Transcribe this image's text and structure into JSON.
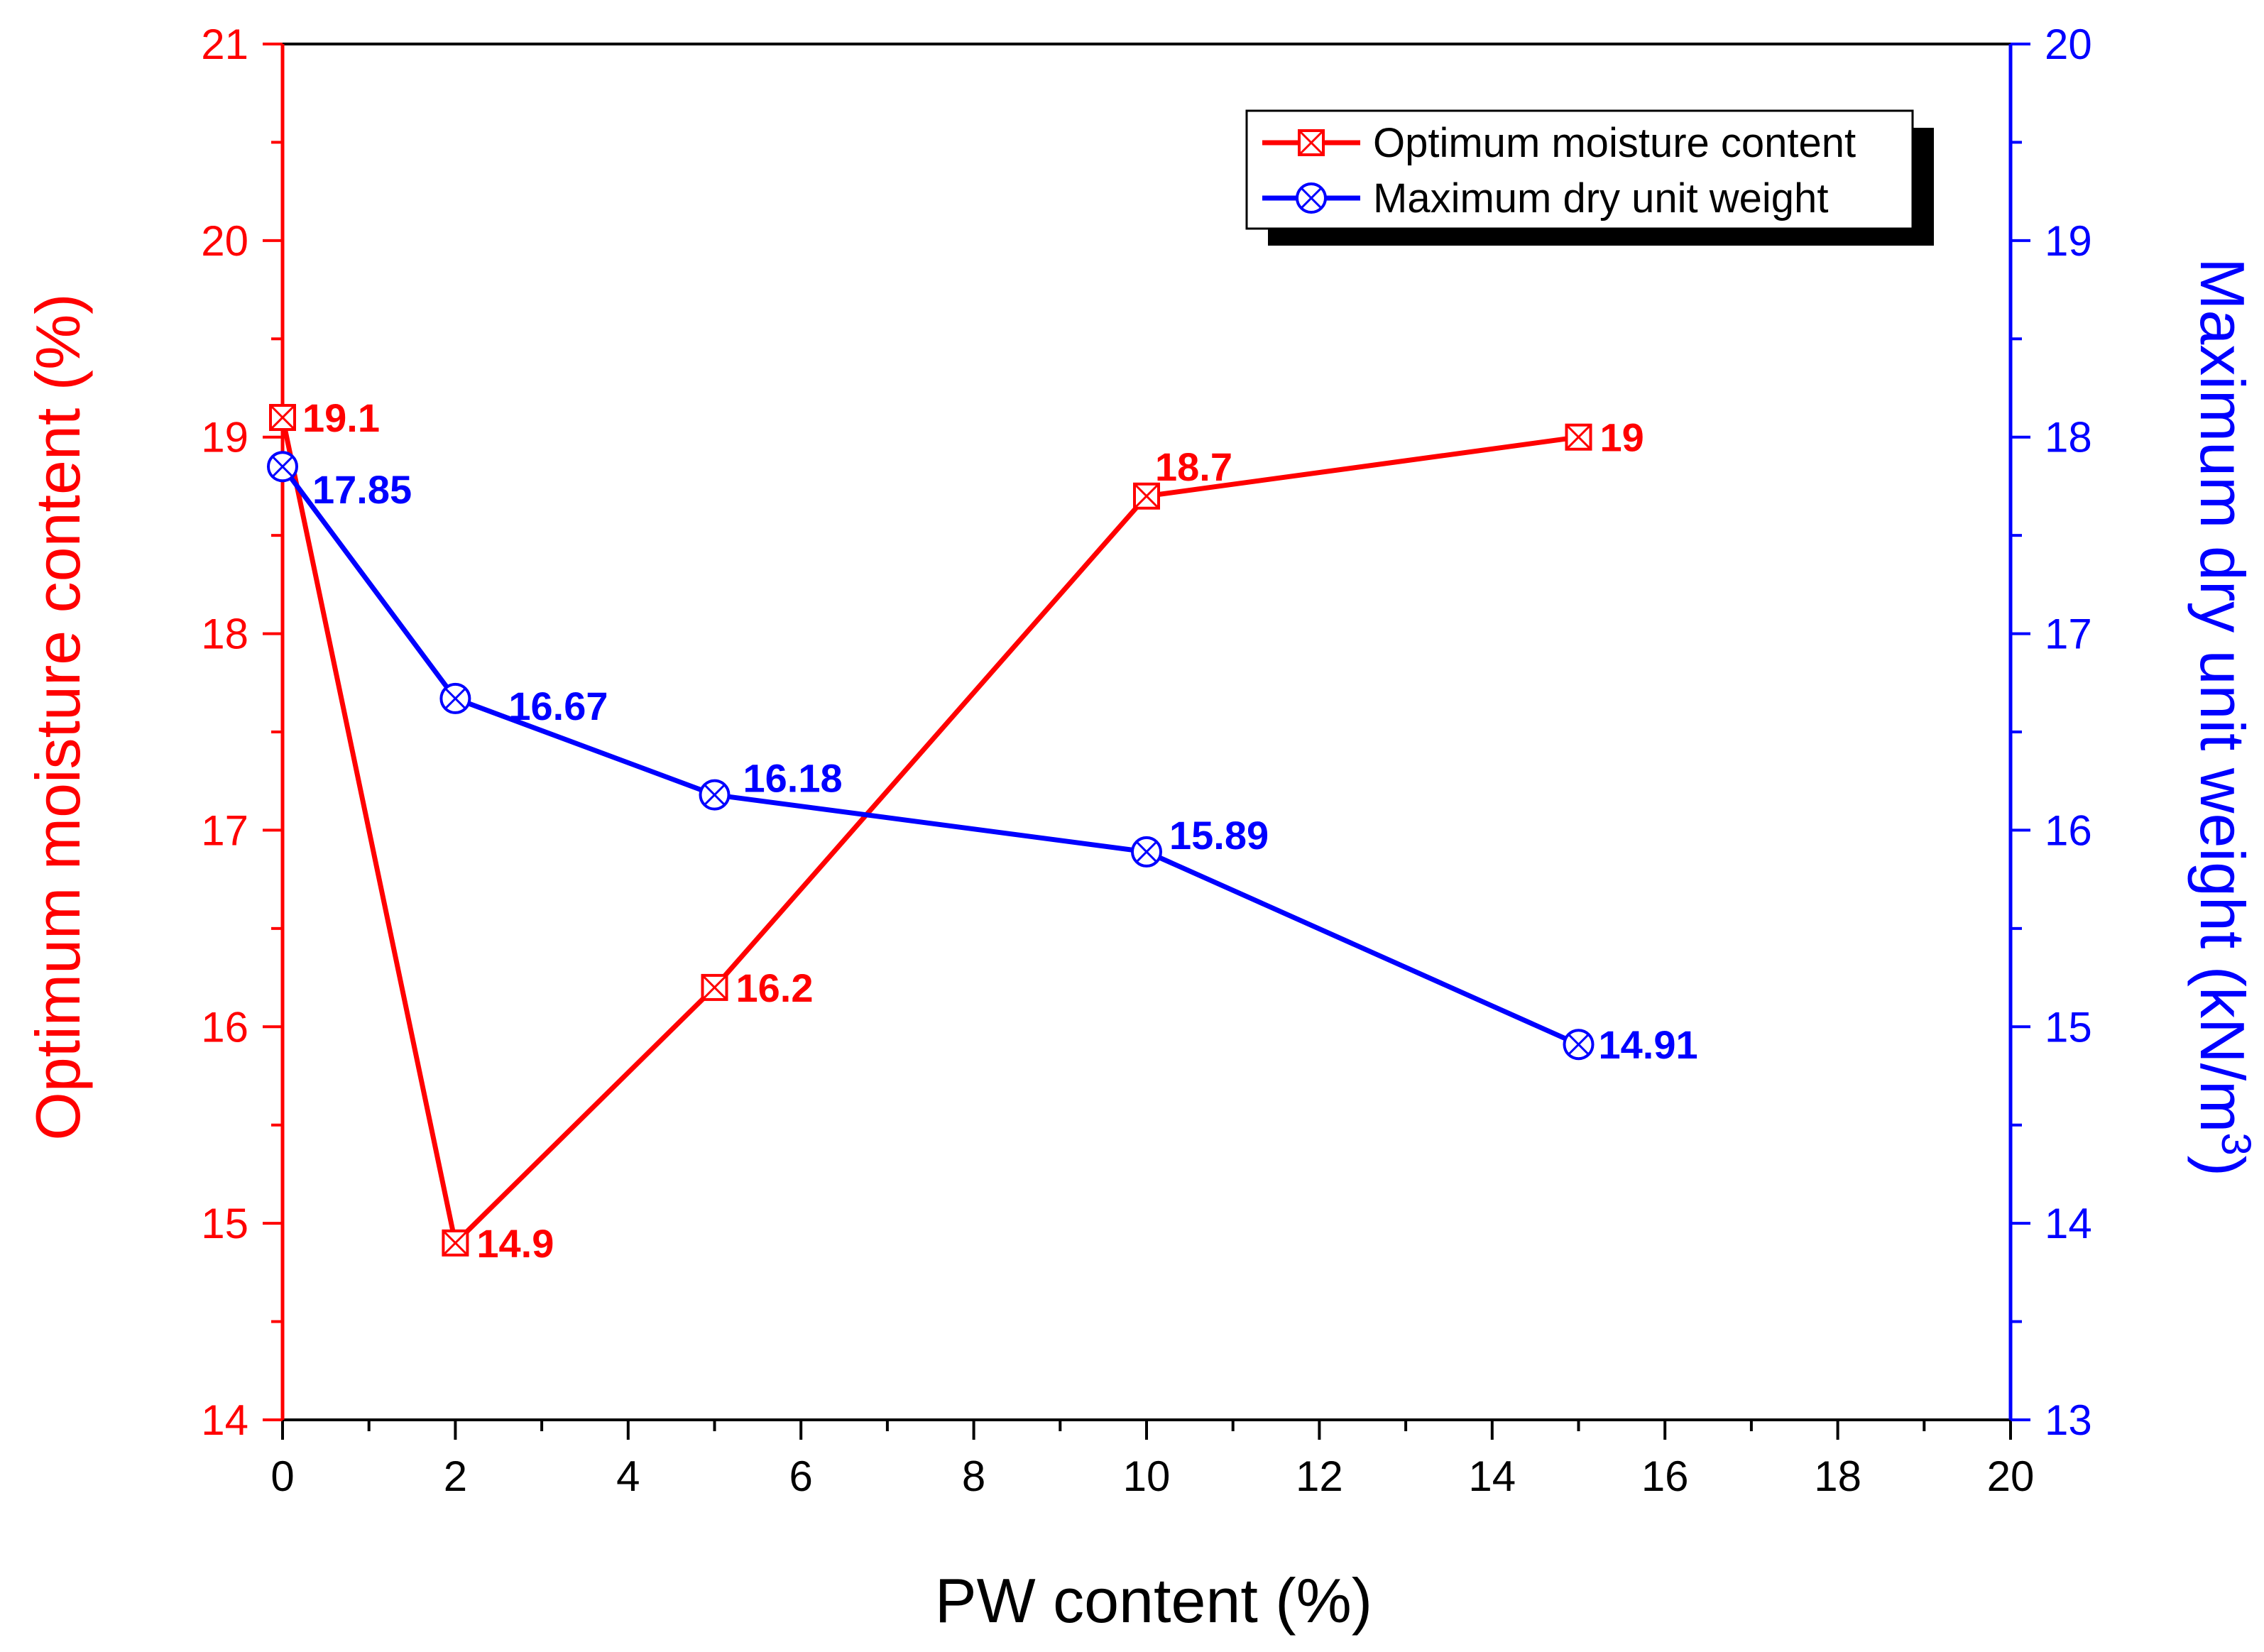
{
  "chart_data": {
    "type": "line",
    "xlabel": "PW content (%)",
    "ylabel_left": "Optimum moisture content (%)",
    "ylabel_right": "Maximum dry unit weight (kN/m³)",
    "ylabel_right_main": "Maximum dry unit weight (kN/m",
    "ylabel_right_sup": "3",
    "ylabel_right_close": ")",
    "xlim": [
      0,
      20
    ],
    "ylim_left": [
      14,
      21
    ],
    "ylim_right": [
      13,
      20
    ],
    "x_ticks": [
      "0",
      "2",
      "4",
      "6",
      "8",
      "10",
      "12",
      "14",
      "16",
      "18",
      "20"
    ],
    "y_left_ticks": [
      "14",
      "15",
      "16",
      "17",
      "18",
      "19",
      "20",
      "21"
    ],
    "y_right_ticks": [
      "13",
      "14",
      "15",
      "16",
      "17",
      "18",
      "19",
      "20"
    ],
    "series": [
      {
        "name": "Optimum moisture content",
        "axis": "left",
        "color": "#ff0000",
        "marker": "square-x",
        "x": [
          0,
          2,
          5,
          10,
          15
        ],
        "values": [
          19.1,
          14.9,
          16.2,
          18.7,
          19
        ],
        "labels": [
          "19.1",
          "14.9",
          "16.2",
          "18.7",
          "19"
        ]
      },
      {
        "name": "Maximum dry unit weight",
        "axis": "right",
        "color": "#0000ff",
        "marker": "circle-x",
        "x": [
          0,
          2,
          5,
          10,
          15
        ],
        "values": [
          17.85,
          16.67,
          16.18,
          15.89,
          14.91
        ],
        "labels": [
          "17.85",
          "16.67",
          "16.18",
          "15.89",
          "14.91"
        ]
      }
    ],
    "legend": {
      "position": "top-right",
      "entries": [
        "Optimum moisture content",
        "Maximum dry unit weight"
      ]
    }
  }
}
